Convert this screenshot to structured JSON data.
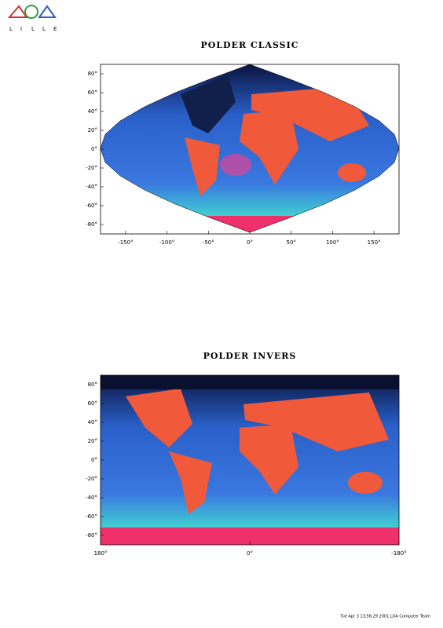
{
  "logo": {
    "letters": [
      "L",
      "I",
      "L",
      "L",
      "E"
    ]
  },
  "maps": [
    {
      "title": "POLDER CLASSIC",
      "yticks": [
        "80°",
        "60°",
        "40°",
        "20°",
        "0°",
        "-20°",
        "-40°",
        "-60°",
        "-80°"
      ],
      "xticks": [
        "-150°",
        "-100°",
        "-50°",
        "0°",
        "50°",
        "100°",
        "150°"
      ]
    },
    {
      "title": "POLDER INVERS",
      "yticks": [
        "80°",
        "60°",
        "40°",
        "20°",
        "0°",
        "-20°",
        "-40°",
        "-60°",
        "-80°"
      ],
      "xticks": [
        "180°",
        "0°",
        "-180°"
      ]
    }
  ],
  "footer": "Tue Apr  3 13:56:29 2001 LOA Computer Team"
}
